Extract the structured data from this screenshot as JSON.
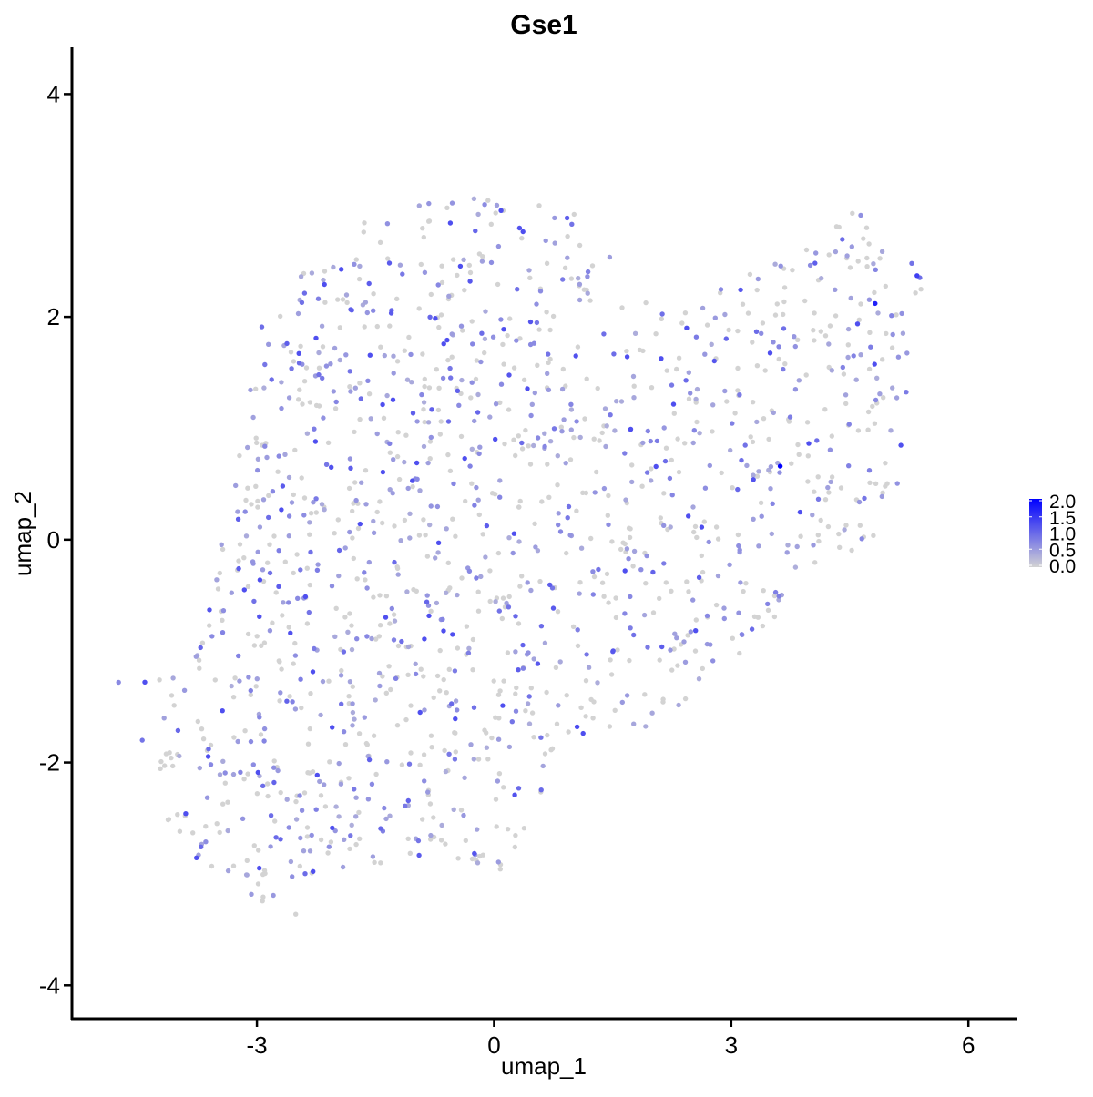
{
  "chart_data": {
    "type": "scatter",
    "title": "Gse1",
    "xlabel": "umap_1",
    "ylabel": "umap_2",
    "xlim": [
      -5.34,
      6.62
    ],
    "ylim": [
      -4.3,
      4.42
    ],
    "xticks": [
      -3,
      0,
      3,
      6
    ],
    "yticks": [
      -4,
      -2,
      0,
      2,
      4
    ],
    "xtick_labels": [
      "-3",
      "0",
      "3",
      "6"
    ],
    "ytick_labels": [
      "-4",
      "-2",
      "0",
      "2",
      "4"
    ],
    "grid": false,
    "color_scale": {
      "low": "#d3d3d3",
      "high": "#0000ff",
      "min": 0.0,
      "max": 2.0,
      "legend_labels": [
        "2.0",
        "1.5",
        "1.0",
        "0.5",
        "0.0"
      ],
      "legend_values": [
        2.0,
        1.5,
        1.0,
        0.5,
        0.0
      ],
      "legend_position": "right"
    },
    "cloud_outline": [
      [
        -4.75,
        -1.15
      ],
      [
        -3.9,
        -1.25
      ],
      [
        -3.6,
        -0.3
      ],
      [
        -3.3,
        0.7
      ],
      [
        -3.0,
        2.0
      ],
      [
        -2.5,
        2.4
      ],
      [
        -2.0,
        2.75
      ],
      [
        -1.4,
        2.95
      ],
      [
        -0.6,
        3.05
      ],
      [
        0.3,
        3.1
      ],
      [
        1.0,
        2.95
      ],
      [
        1.5,
        2.85
      ],
      [
        1.65,
        2.4
      ],
      [
        2.0,
        2.05
      ],
      [
        2.6,
        2.15
      ],
      [
        3.3,
        2.45
      ],
      [
        3.8,
        2.55
      ],
      [
        4.5,
        3.0
      ],
      [
        4.9,
        2.75
      ],
      [
        5.4,
        2.4
      ],
      [
        5.4,
        1.9
      ],
      [
        5.2,
        0.8
      ],
      [
        5.05,
        0.15
      ],
      [
        4.6,
        -0.1
      ],
      [
        4.0,
        -0.35
      ],
      [
        3.3,
        -0.9
      ],
      [
        2.75,
        -1.3
      ],
      [
        1.85,
        -1.75
      ],
      [
        1.3,
        -1.85
      ],
      [
        0.85,
        -2.1
      ],
      [
        0.55,
        -2.75
      ],
      [
        0.0,
        -3.05
      ],
      [
        -0.5,
        -2.95
      ],
      [
        -1.2,
        -2.8
      ],
      [
        -1.6,
        -3.05
      ],
      [
        -2.1,
        -3.2
      ],
      [
        -2.6,
        -3.45
      ],
      [
        -3.1,
        -3.25
      ],
      [
        -3.7,
        -3.0
      ],
      [
        -4.1,
        -2.6
      ],
      [
        -4.3,
        -1.95
      ],
      [
        -4.15,
        -1.45
      ]
    ],
    "highlight_points": [
      {
        "x": 3.62,
        "y": 0.66,
        "value": 2.0
      },
      {
        "x": 4.82,
        "y": 2.12,
        "value": 1.7
      },
      {
        "x": 5.35,
        "y": 2.37,
        "value": 1.4
      },
      {
        "x": 1.05,
        "y": -1.68,
        "value": 1.3
      },
      {
        "x": -3.6,
        "y": -0.63,
        "value": 1.2
      },
      {
        "x": -4.45,
        "y": -1.8,
        "value": 0.9
      },
      {
        "x": -4.75,
        "y": -1.28,
        "value": 0.7
      }
    ],
    "n_cells": 1500,
    "expressing_fraction": 0.52,
    "seed": 20240611
  }
}
